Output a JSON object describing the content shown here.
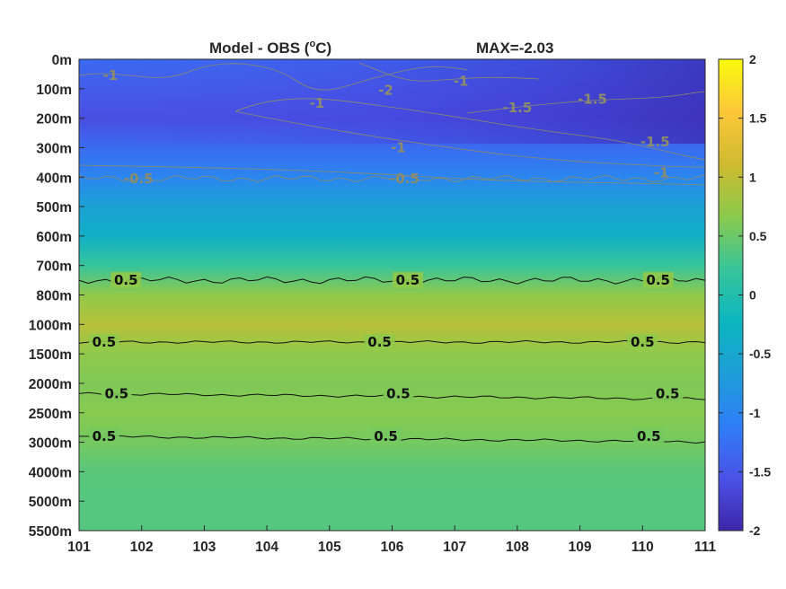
{
  "chart_data": {
    "type": "heatmap",
    "title_left": "Model - OBS (",
    "title_unit_sup": "o",
    "title_unit_tail": "C)",
    "title_right": "MAX=-2.03",
    "x_ticks": [
      "101",
      "102",
      "103",
      "104",
      "105",
      "106",
      "107",
      "108",
      "109",
      "110",
      "111"
    ],
    "xlim": [
      101,
      111
    ],
    "y_ticks": [
      "0m",
      "100m",
      "200m",
      "300m",
      "400m",
      "500m",
      "600m",
      "700m",
      "800m",
      "1000m",
      "1500m",
      "2000m",
      "2500m",
      "3000m",
      "4000m",
      "5000m",
      "5500m"
    ],
    "depth_values": [
      0,
      100,
      200,
      300,
      400,
      500,
      600,
      700,
      800,
      1000,
      1500,
      2000,
      2500,
      3000,
      4000,
      5000,
      5500
    ],
    "layer_values": [
      -1.3,
      -1.45,
      -1.6,
      -1.3,
      -1.0,
      -0.6,
      -0.35,
      0.2,
      0.7,
      0.95,
      0.7,
      0.6,
      0.65,
      0.55,
      0.4,
      0.38,
      0.38
    ],
    "colorbar": {
      "ticks": [
        "2",
        "1.5",
        "1",
        "0.5",
        "0",
        "-0.5",
        "-1",
        "-1.5",
        "-2"
      ],
      "range": [
        -2,
        2
      ],
      "colormap": [
        "#3e26a8",
        "#4a52e7",
        "#2f7ef7",
        "#1e9ed8",
        "#0cb6bf",
        "#38c59a",
        "#8bca4c",
        "#d0ba2f",
        "#fcc73a",
        "#f9fb0e"
      ]
    },
    "contour_levels": [
      {
        "value": 0.5,
        "style": "solid",
        "y_start": 0.5,
        "y_end": 0.5,
        "depth_row": 7.5,
        "labels": [
          {
            "text": "0.5",
            "x": 101.75
          },
          {
            "text": "0.5",
            "x": 106.25
          },
          {
            "text": "0.5",
            "x": 110.25
          }
        ]
      },
      {
        "value": 0.5,
        "style": "solid",
        "depth_row": 9.6,
        "labels": [
          {
            "text": "0.5",
            "x": 101.4
          },
          {
            "text": "0.5",
            "x": 105.8
          },
          {
            "text": "0.5",
            "x": 110.0
          }
        ]
      },
      {
        "value": 0.5,
        "style": "solid",
        "depth_row": 11.35,
        "labels": [
          {
            "text": "0.5",
            "x": 101.6
          },
          {
            "text": "0.5",
            "x": 106.1
          },
          {
            "text": "0.5",
            "x": 110.4
          }
        ]
      },
      {
        "value": 0.5,
        "style": "solid",
        "depth_row": 12.8,
        "labels": [
          {
            "text": "0.5",
            "x": 101.4
          },
          {
            "text": "0.5",
            "x": 105.9
          },
          {
            "text": "0.5",
            "x": 110.1
          }
        ]
      },
      {
        "value": -0.5,
        "style": "grey",
        "depth_row": 4.05,
        "labels": [
          {
            "text": "-0.5",
            "x": 101.95
          },
          {
            "text": "-0.5",
            "x": 106.2
          }
        ]
      },
      {
        "value": -1,
        "style": "grey",
        "labels": [
          {
            "text": "-1",
            "x": 101.5,
            "depth_row": 0.55
          },
          {
            "text": "-1",
            "x": 104.8,
            "depth_row": 1.5
          },
          {
            "text": "-1",
            "x": 106.1,
            "depth_row": 3.0
          },
          {
            "text": "-1",
            "x": 107.1,
            "depth_row": 0.75
          },
          {
            "text": "-1",
            "x": 110.3,
            "depth_row": 3.85
          }
        ]
      },
      {
        "value": -1.5,
        "style": "grey",
        "labels": [
          {
            "text": "-1.5",
            "x": 108.0,
            "depth_row": 1.65
          },
          {
            "text": "-1.5",
            "x": 109.2,
            "depth_row": 1.35
          },
          {
            "text": "-1.5",
            "x": 110.2,
            "depth_row": 2.8
          }
        ]
      },
      {
        "value": -2,
        "style": "grey",
        "labels": [
          {
            "text": "-2",
            "x": 105.9,
            "depth_row": 1.05
          }
        ]
      }
    ]
  }
}
